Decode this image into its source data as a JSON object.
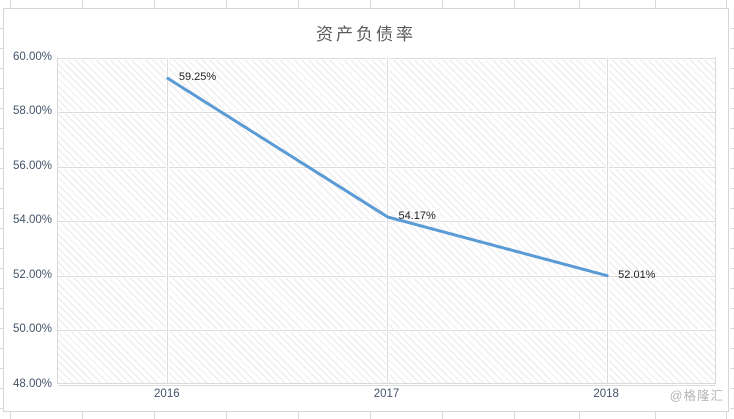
{
  "chart_data": {
    "type": "line",
    "title": "资产负债率",
    "categories": [
      "2016",
      "2017",
      "2018"
    ],
    "series": [
      {
        "name": "资产负债率",
        "values": [
          59.25,
          54.17,
          52.01
        ]
      }
    ],
    "data_labels": [
      "59.25%",
      "54.17%",
      "52.01%"
    ],
    "xlabel": "",
    "ylabel": "",
    "ylim": [
      48,
      60
    ],
    "y_tick_values": [
      60,
      58,
      56,
      54,
      52,
      50,
      48
    ],
    "y_tick_labels": [
      "60.00%",
      "58.00%",
      "56.00%",
      "54.00%",
      "52.00%",
      "50.00%",
      "48.00%"
    ],
    "grid": true,
    "legend": "none",
    "line_color": "#5B9BD5",
    "plot_fill_pattern": "light-downward-diagonal-hatch"
  },
  "watermark": {
    "text": "@格隆汇"
  },
  "colors": {
    "line": "#5B9BD5",
    "axis_label": "#44546A",
    "data_label": "#1f1f1f",
    "title": "#595959",
    "gridline": "#dcdcdc",
    "frame": "#d6d6d6",
    "watermark": "#b5b5b5"
  }
}
